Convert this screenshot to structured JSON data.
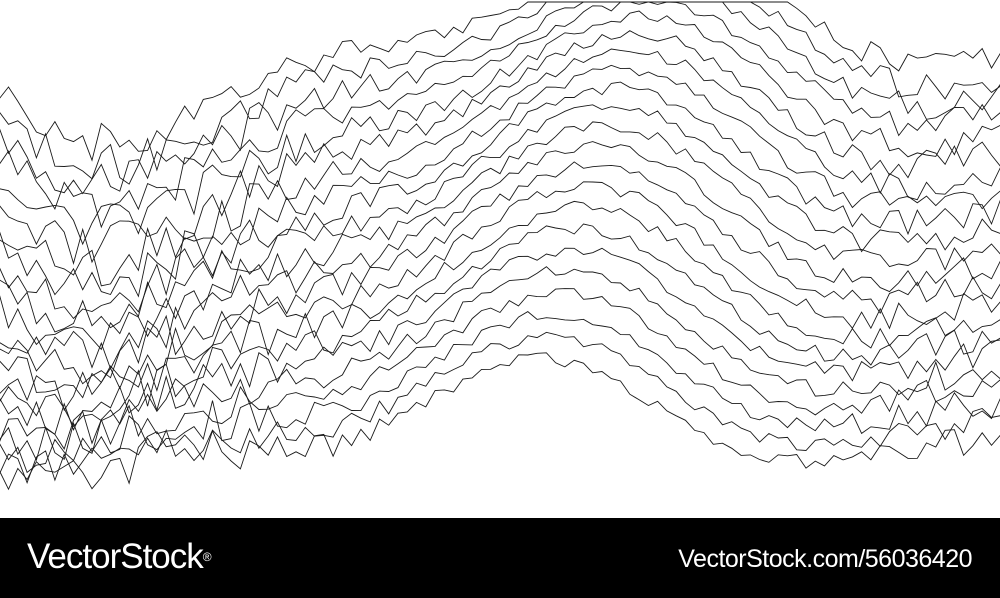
{
  "artwork": {
    "line_color": "#1a1a1a",
    "background_color": "#ffffff",
    "line_count": 22
  },
  "footer": {
    "background_color": "#000000",
    "text_color": "#ffffff",
    "brand": "VectorStock",
    "brand_mark": "®",
    "image_id": "VectorStock.com/56036420"
  }
}
